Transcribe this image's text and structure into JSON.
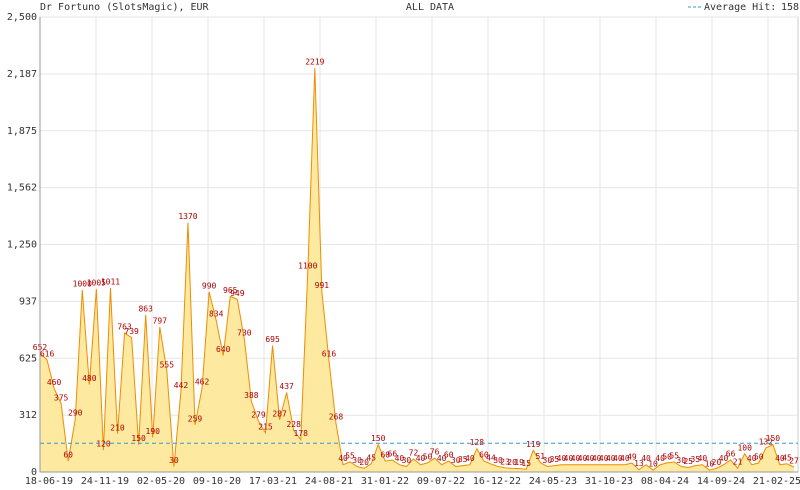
{
  "chart_data": {
    "type": "area",
    "title": "Dr Fortuno (SlotsMagic), EUR",
    "subtitle": "ALL DATA",
    "average_label": "Average Hit:",
    "average": 158,
    "ylim": [
      0,
      2500
    ],
    "yticks": [
      0,
      312,
      625,
      937,
      {
        "value": 1250,
        "label": "1,250"
      },
      {
        "value": 1562,
        "label": "1,562"
      },
      {
        "value": 1875,
        "label": "1,875"
      },
      {
        "value": 2187,
        "label": "2,187"
      },
      {
        "value": 2500,
        "label": "2,500"
      }
    ],
    "x_tick_labels": [
      "18-06-19",
      "24-11-19",
      "02-05-20",
      "09-10-20",
      "17-03-21",
      "24-08-21",
      "31-01-22",
      "09-07-22",
      "16-12-22",
      "24-05-23",
      "31-10-23",
      "08-04-24",
      "14-09-24",
      "21-02-25"
    ],
    "color": "#f08c00",
    "fill": "#fde9a0",
    "average_color": "#3399cc",
    "grid": true,
    "values": [
      652,
      616,
      460,
      375,
      60,
      290,
      1000,
      480,
      1005,
      120,
      1011,
      210,
      763,
      739,
      150,
      863,
      190,
      797,
      555,
      30,
      442,
      1370,
      259,
      462,
      990,
      834,
      640,
      965,
      949,
      730,
      388,
      279,
      215,
      695,
      287,
      437,
      228,
      178,
      1100,
      2219,
      991,
      616,
      268,
      40,
      55,
      30,
      20,
      45,
      150,
      60,
      66,
      40,
      30,
      72,
      40,
      50,
      76,
      40,
      60,
      30,
      35,
      40,
      128,
      60,
      44,
      30,
      23,
      20,
      19,
      15,
      119,
      51,
      30,
      35,
      40,
      40,
      40,
      40,
      40,
      40,
      40,
      40,
      40,
      40,
      49,
      13,
      40,
      10,
      40,
      50,
      55,
      30,
      25,
      35,
      40,
      10,
      20,
      40,
      66,
      21,
      100,
      40,
      50,
      132,
      150,
      40,
      45,
      27
    ]
  }
}
